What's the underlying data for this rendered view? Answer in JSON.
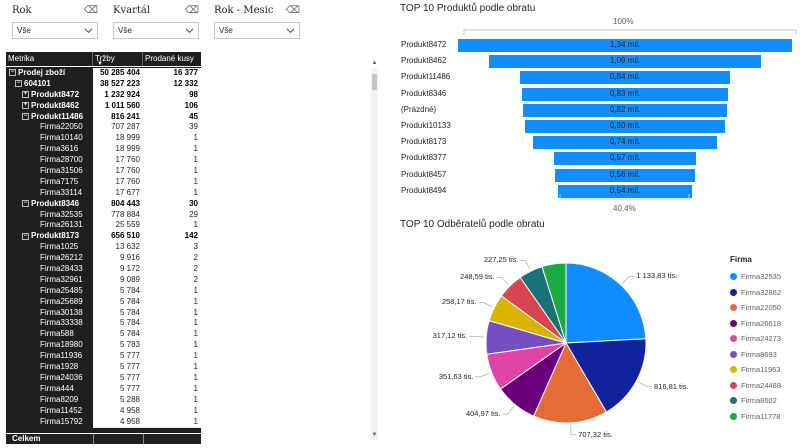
{
  "slicers": [
    {
      "title": "Rok",
      "value": "Vše"
    },
    {
      "title": "Kvartál",
      "value": "Vše"
    },
    {
      "title": "Rok - Mesic",
      "value": "Vše"
    }
  ],
  "matrix": {
    "headers": [
      "Metrika",
      "Tržby",
      "Prodané kusy"
    ],
    "rows": [
      {
        "label": "Prodej zboží",
        "level": 0,
        "expand": "−",
        "bold": true,
        "trzby": "50 285 404",
        "kusy": "16 377"
      },
      {
        "label": "604101",
        "level": 1,
        "expand": "−",
        "bold": true,
        "trzby": "38 527 223",
        "kusy": "12 332"
      },
      {
        "label": "Produkt8472",
        "level": 2,
        "expand": "+",
        "bold": true,
        "trzby": "1 232 924",
        "kusy": "98"
      },
      {
        "label": "Produkt8462",
        "level": 2,
        "expand": "+",
        "bold": true,
        "trzby": "1 011 560",
        "kusy": "106"
      },
      {
        "label": "Produkt11486",
        "level": 2,
        "expand": "−",
        "bold": true,
        "trzby": "816 241",
        "kusy": "45"
      },
      {
        "label": "Firma22050",
        "level": 3,
        "expand": "",
        "bold": false,
        "trzby": "707 287",
        "kusy": "39"
      },
      {
        "label": "Firma10140",
        "level": 3,
        "expand": "",
        "bold": false,
        "trzby": "18 999",
        "kusy": "1"
      },
      {
        "label": "Firma3616",
        "level": 3,
        "expand": "",
        "bold": false,
        "trzby": "18 999",
        "kusy": "1"
      },
      {
        "label": "Firma28700",
        "level": 3,
        "expand": "",
        "bold": false,
        "trzby": "17 760",
        "kusy": "1"
      },
      {
        "label": "Firma31506",
        "level": 3,
        "expand": "",
        "bold": false,
        "trzby": "17 760",
        "kusy": "1"
      },
      {
        "label": "Firma7175",
        "level": 3,
        "expand": "",
        "bold": false,
        "trzby": "17 760",
        "kusy": "1"
      },
      {
        "label": "Firma33114",
        "level": 3,
        "expand": "",
        "bold": false,
        "trzby": "17 677",
        "kusy": "1"
      },
      {
        "label": "Produkt8346",
        "level": 2,
        "expand": "−",
        "bold": true,
        "trzby": "804 443",
        "kusy": "30"
      },
      {
        "label": "Firma32535",
        "level": 3,
        "expand": "",
        "bold": false,
        "trzby": "778 884",
        "kusy": "29"
      },
      {
        "label": "Firma26131",
        "level": 3,
        "expand": "",
        "bold": false,
        "trzby": "25 559",
        "kusy": "1"
      },
      {
        "label": "Produkt8173",
        "level": 2,
        "expand": "−",
        "bold": true,
        "trzby": "656 510",
        "kusy": "142"
      },
      {
        "label": "Firma1025",
        "level": 3,
        "expand": "",
        "bold": false,
        "trzby": "13 632",
        "kusy": "3"
      },
      {
        "label": "Firma26212",
        "level": 3,
        "expand": "",
        "bold": false,
        "trzby": "9 916",
        "kusy": "2"
      },
      {
        "label": "Firma28433",
        "level": 3,
        "expand": "",
        "bold": false,
        "trzby": "9 172",
        "kusy": "2"
      },
      {
        "label": "Firma32961",
        "level": 3,
        "expand": "",
        "bold": false,
        "trzby": "9 089",
        "kusy": "2"
      },
      {
        "label": "Firma25485",
        "level": 3,
        "expand": "",
        "bold": false,
        "trzby": "5 784",
        "kusy": "1"
      },
      {
        "label": "Firma25689",
        "level": 3,
        "expand": "",
        "bold": false,
        "trzby": "5 784",
        "kusy": "1"
      },
      {
        "label": "Firma30138",
        "level": 3,
        "expand": "",
        "bold": false,
        "trzby": "5 784",
        "kusy": "1"
      },
      {
        "label": "Firma33338",
        "level": 3,
        "expand": "",
        "bold": false,
        "trzby": "5 784",
        "kusy": "1"
      },
      {
        "label": "Firma588",
        "level": 3,
        "expand": "",
        "bold": false,
        "trzby": "5 784",
        "kusy": "1"
      },
      {
        "label": "Firma18980",
        "level": 3,
        "expand": "",
        "bold": false,
        "trzby": "5 783",
        "kusy": "1"
      },
      {
        "label": "Firma11936",
        "level": 3,
        "expand": "",
        "bold": false,
        "trzby": "5 777",
        "kusy": "1"
      },
      {
        "label": "Firma1928",
        "level": 3,
        "expand": "",
        "bold": false,
        "trzby": "5 777",
        "kusy": "1"
      },
      {
        "label": "Firma24036",
        "level": 3,
        "expand": "",
        "bold": false,
        "trzby": "5 777",
        "kusy": "1"
      },
      {
        "label": "Firma444",
        "level": 3,
        "expand": "",
        "bold": false,
        "trzby": "5 777",
        "kusy": "1"
      },
      {
        "label": "Firma8209",
        "level": 3,
        "expand": "",
        "bold": false,
        "trzby": "5 288",
        "kusy": "1"
      },
      {
        "label": "Firma11452",
        "level": 3,
        "expand": "",
        "bold": false,
        "trzby": "4 958",
        "kusy": "1"
      },
      {
        "label": "Firma15792",
        "level": 3,
        "expand": "",
        "bold": false,
        "trzby": "4 958",
        "kusy": "1"
      }
    ],
    "total_label": "Celkem"
  },
  "chart_data": [
    {
      "type": "bar",
      "subtype": "funnel",
      "title": "TOP 10 Produktů podle obratu",
      "top_percent_label": "100%",
      "bottom_percent_label": "40,4%",
      "categories": [
        "Produkt8472",
        "Produkt8462",
        "Produkt11486",
        "Produkt8346",
        "(Prázdné)",
        "Produkt10133",
        "Produkt8173",
        "Produkt8377",
        "Produkt8457",
        "Produkt8494"
      ],
      "values": [
        1.34,
        1.09,
        0.84,
        0.83,
        0.82,
        0.8,
        0.74,
        0.57,
        0.56,
        0.54
      ],
      "value_labels": [
        "1,34 mil.",
        "1,09 mil.",
        "0,84 mil.",
        "0,83 mil.",
        "0,82 mil.",
        "0,80 mil.",
        "0,74 mil.",
        "0,57 mil.",
        "0,56 mil.",
        "0,54 mil."
      ],
      "bar_color": "#118dff"
    },
    {
      "type": "pie",
      "title": "TOP 10 Odběratelů podle obratu",
      "legend_title": "Firma",
      "legend_position": "right",
      "series": [
        {
          "name": "Firma32535",
          "value": 1133.83,
          "label": "1 133,83 tis.",
          "color": "#118dff"
        },
        {
          "name": "Firma32862",
          "value": 816.81,
          "label": "816,81 tis.",
          "color": "#12239e"
        },
        {
          "name": "Firma22050",
          "value": 707.32,
          "label": "707,32 tis.",
          "color": "#e66c37"
        },
        {
          "name": "Firma26618",
          "value": 404.97,
          "label": "404,97 tis.",
          "color": "#6b007b"
        },
        {
          "name": "Firma24273",
          "value": 351.63,
          "label": "351,63 tis.",
          "color": "#e044a7"
        },
        {
          "name": "Firma8693",
          "value": 317.12,
          "label": "317,12 tis.",
          "color": "#744ec2"
        },
        {
          "name": "Firma11963",
          "value": 258.17,
          "label": "258,17 tis.",
          "color": "#d9b300"
        },
        {
          "name": "Firma24488",
          "value": 248.59,
          "label": "248,59 tis.",
          "color": "#d64550"
        },
        {
          "name": "Firma8602",
          "value": 227.25,
          "label": "227,25 tis.",
          "color": "#197278"
        },
        {
          "name": "Firma11778",
          "value": 227.25,
          "label": "",
          "color": "#1aab40"
        }
      ]
    }
  ]
}
